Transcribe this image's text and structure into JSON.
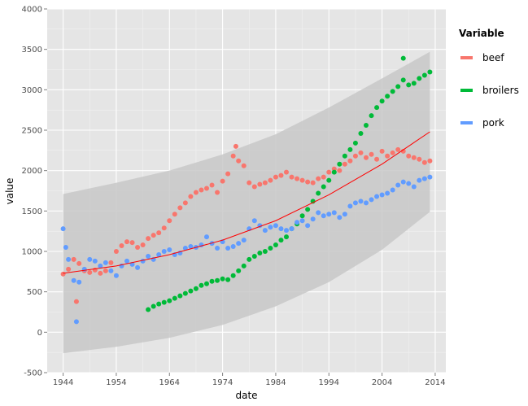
{
  "chart_data": {
    "type": "scatter",
    "xlabel": "date",
    "ylabel": "value",
    "xlim": [
      1941,
      2016
    ],
    "ylim": [
      -500,
      4000
    ],
    "x_ticks": [
      1944,
      1954,
      1964,
      1974,
      1984,
      1994,
      2004,
      2014
    ],
    "y_ticks": [
      -500,
      0,
      500,
      1000,
      1500,
      2000,
      2500,
      3000,
      3500,
      4000
    ],
    "grid": true,
    "legend": {
      "title": "Variable",
      "placement": "right"
    },
    "series": [
      {
        "name": "beef",
        "color": "#F8766D",
        "points": [
          [
            1944.0,
            720
          ],
          [
            1945.0,
            780
          ],
          [
            1946.0,
            900
          ],
          [
            1946.5,
            380
          ],
          [
            1947.0,
            850
          ],
          [
            1948.0,
            760
          ],
          [
            1949.0,
            740
          ],
          [
            1950.0,
            770
          ],
          [
            1951.0,
            730
          ],
          [
            1952.0,
            760
          ],
          [
            1953.0,
            860
          ],
          [
            1954.0,
            1000
          ],
          [
            1955.0,
            1070
          ],
          [
            1956.0,
            1120
          ],
          [
            1957.0,
            1110
          ],
          [
            1958.0,
            1050
          ],
          [
            1959.0,
            1080
          ],
          [
            1960.0,
            1160
          ],
          [
            1961.0,
            1200
          ],
          [
            1962.0,
            1230
          ],
          [
            1963.0,
            1290
          ],
          [
            1964.0,
            1380
          ],
          [
            1965.0,
            1460
          ],
          [
            1966.0,
            1540
          ],
          [
            1967.0,
            1600
          ],
          [
            1968.0,
            1680
          ],
          [
            1969.0,
            1730
          ],
          [
            1970.0,
            1760
          ],
          [
            1971.0,
            1780
          ],
          [
            1972.0,
            1820
          ],
          [
            1973.0,
            1730
          ],
          [
            1974.0,
            1870
          ],
          [
            1975.0,
            1960
          ],
          [
            1976.0,
            2180
          ],
          [
            1976.5,
            2300
          ],
          [
            1977.0,
            2120
          ],
          [
            1978.0,
            2060
          ],
          [
            1979.0,
            1850
          ],
          [
            1980.0,
            1800
          ],
          [
            1981.0,
            1830
          ],
          [
            1982.0,
            1850
          ],
          [
            1983.0,
            1880
          ],
          [
            1984.0,
            1920
          ],
          [
            1985.0,
            1940
          ],
          [
            1986.0,
            1980
          ],
          [
            1987.0,
            1920
          ],
          [
            1988.0,
            1900
          ],
          [
            1989.0,
            1880
          ],
          [
            1990.0,
            1860
          ],
          [
            1991.0,
            1850
          ],
          [
            1992.0,
            1900
          ],
          [
            1993.0,
            1920
          ],
          [
            1994.0,
            1980
          ],
          [
            1995.0,
            2020
          ],
          [
            1996.0,
            2000
          ],
          [
            1997.0,
            2080
          ],
          [
            1998.0,
            2120
          ],
          [
            1999.0,
            2180
          ],
          [
            2000.0,
            2220
          ],
          [
            2001.0,
            2160
          ],
          [
            2002.0,
            2200
          ],
          [
            2003.0,
            2140
          ],
          [
            2004.0,
            2240
          ],
          [
            2005.0,
            2180
          ],
          [
            2006.0,
            2220
          ],
          [
            2007.0,
            2260
          ],
          [
            2008.0,
            2240
          ],
          [
            2009.0,
            2180
          ],
          [
            2010.0,
            2160
          ],
          [
            2011.0,
            2140
          ],
          [
            2012.0,
            2100
          ],
          [
            2013.0,
            2120
          ]
        ]
      },
      {
        "name": "broilers",
        "color": "#00BA38",
        "points": [
          [
            1960.0,
            280
          ],
          [
            1961.0,
            320
          ],
          [
            1962.0,
            350
          ],
          [
            1963.0,
            370
          ],
          [
            1964.0,
            390
          ],
          [
            1965.0,
            420
          ],
          [
            1966.0,
            450
          ],
          [
            1967.0,
            480
          ],
          [
            1968.0,
            510
          ],
          [
            1969.0,
            540
          ],
          [
            1970.0,
            580
          ],
          [
            1971.0,
            600
          ],
          [
            1972.0,
            630
          ],
          [
            1973.0,
            640
          ],
          [
            1974.0,
            660
          ],
          [
            1975.0,
            650
          ],
          [
            1976.0,
            700
          ],
          [
            1977.0,
            760
          ],
          [
            1978.0,
            820
          ],
          [
            1979.0,
            900
          ],
          [
            1980.0,
            940
          ],
          [
            1981.0,
            980
          ],
          [
            1982.0,
            1000
          ],
          [
            1983.0,
            1040
          ],
          [
            1984.0,
            1080
          ],
          [
            1985.0,
            1140
          ],
          [
            1986.0,
            1180
          ],
          [
            1987.0,
            1280
          ],
          [
            1988.0,
            1340
          ],
          [
            1989.0,
            1440
          ],
          [
            1990.0,
            1520
          ],
          [
            1991.0,
            1620
          ],
          [
            1992.0,
            1720
          ],
          [
            1993.0,
            1800
          ],
          [
            1994.0,
            1880
          ],
          [
            1995.0,
            1980
          ],
          [
            1996.0,
            2080
          ],
          [
            1997.0,
            2180
          ],
          [
            1998.0,
            2260
          ],
          [
            1999.0,
            2340
          ],
          [
            2000.0,
            2460
          ],
          [
            2001.0,
            2560
          ],
          [
            2002.0,
            2680
          ],
          [
            2003.0,
            2780
          ],
          [
            2004.0,
            2860
          ],
          [
            2005.0,
            2920
          ],
          [
            2006.0,
            2980
          ],
          [
            2007.0,
            3040
          ],
          [
            2008.0,
            3120
          ],
          [
            2008.0,
            3390
          ],
          [
            2009.0,
            3060
          ],
          [
            2010.0,
            3080
          ],
          [
            2011.0,
            3140
          ],
          [
            2012.0,
            3180
          ],
          [
            2013.0,
            3220
          ]
        ]
      },
      {
        "name": "pork",
        "color": "#619CFF",
        "points": [
          [
            1944.0,
            1280
          ],
          [
            1944.5,
            1050
          ],
          [
            1945.0,
            900
          ],
          [
            1946.0,
            640
          ],
          [
            1946.5,
            130
          ],
          [
            1947.0,
            620
          ],
          [
            1948.0,
            780
          ],
          [
            1949.0,
            900
          ],
          [
            1950.0,
            880
          ],
          [
            1951.0,
            820
          ],
          [
            1952.0,
            860
          ],
          [
            1953.0,
            760
          ],
          [
            1954.0,
            700
          ],
          [
            1955.0,
            820
          ],
          [
            1956.0,
            880
          ],
          [
            1957.0,
            840
          ],
          [
            1958.0,
            800
          ],
          [
            1959.0,
            880
          ],
          [
            1960.0,
            940
          ],
          [
            1961.0,
            900
          ],
          [
            1962.0,
            960
          ],
          [
            1963.0,
            1000
          ],
          [
            1964.0,
            1020
          ],
          [
            1965.0,
            960
          ],
          [
            1966.0,
            980
          ],
          [
            1967.0,
            1040
          ],
          [
            1968.0,
            1060
          ],
          [
            1969.0,
            1050
          ],
          [
            1970.0,
            1080
          ],
          [
            1971.0,
            1180
          ],
          [
            1972.0,
            1100
          ],
          [
            1973.0,
            1040
          ],
          [
            1974.0,
            1120
          ],
          [
            1975.0,
            1040
          ],
          [
            1976.0,
            1060
          ],
          [
            1977.0,
            1100
          ],
          [
            1978.0,
            1140
          ],
          [
            1979.0,
            1280
          ],
          [
            1980.0,
            1380
          ],
          [
            1981.0,
            1320
          ],
          [
            1982.0,
            1260
          ],
          [
            1983.0,
            1300
          ],
          [
            1984.0,
            1320
          ],
          [
            1985.0,
            1280
          ],
          [
            1986.0,
            1260
          ],
          [
            1987.0,
            1280
          ],
          [
            1988.0,
            1360
          ],
          [
            1989.0,
            1380
          ],
          [
            1990.0,
            1320
          ],
          [
            1991.0,
            1400
          ],
          [
            1992.0,
            1480
          ],
          [
            1993.0,
            1440
          ],
          [
            1994.0,
            1460
          ],
          [
            1995.0,
            1480
          ],
          [
            1996.0,
            1420
          ],
          [
            1997.0,
            1460
          ],
          [
            1998.0,
            1560
          ],
          [
            1999.0,
            1600
          ],
          [
            2000.0,
            1620
          ],
          [
            2001.0,
            1600
          ],
          [
            2002.0,
            1640
          ],
          [
            2003.0,
            1680
          ],
          [
            2004.0,
            1700
          ],
          [
            2005.0,
            1720
          ],
          [
            2006.0,
            1760
          ],
          [
            2007.0,
            1820
          ],
          [
            2008.0,
            1860
          ],
          [
            2009.0,
            1840
          ],
          [
            2010.0,
            1800
          ],
          [
            2011.0,
            1880
          ],
          [
            2012.0,
            1900
          ],
          [
            2013.0,
            1920
          ]
        ]
      }
    ],
    "trend": {
      "color": "#FF0000",
      "points": [
        [
          1944,
          730
        ],
        [
          1954,
          820
        ],
        [
          1964,
          960
        ],
        [
          1974,
          1140
        ],
        [
          1984,
          1380
        ],
        [
          1994,
          1700
        ],
        [
          2004,
          2080
        ],
        [
          2013,
          2480
        ]
      ]
    },
    "band": {
      "fill": "#C8C8C8",
      "upper": [
        [
          1944,
          1710
        ],
        [
          1954,
          1850
        ],
        [
          1964,
          2000
        ],
        [
          1974,
          2200
        ],
        [
          1984,
          2450
        ],
        [
          1994,
          2780
        ],
        [
          2004,
          3140
        ],
        [
          2013,
          3470
        ]
      ],
      "lower": [
        [
          1944,
          -260
        ],
        [
          1954,
          -180
        ],
        [
          1964,
          -70
        ],
        [
          1974,
          90
        ],
        [
          1984,
          320
        ],
        [
          1994,
          620
        ],
        [
          2004,
          1020
        ],
        [
          2013,
          1490
        ]
      ]
    }
  }
}
